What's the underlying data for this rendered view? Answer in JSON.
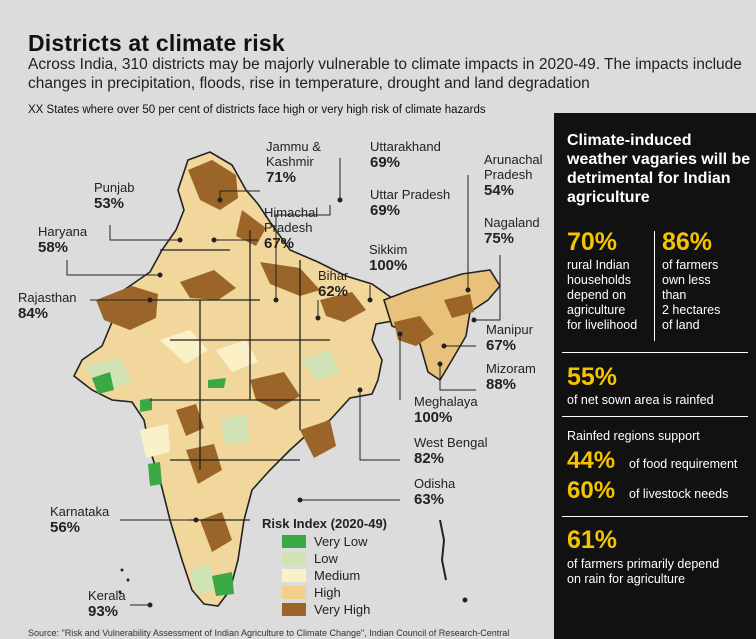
{
  "title": "Districts at climate risk",
  "subtitle": "Across India, 310 districts may be majorly vulnerable to climate impacts in 2020-49. The impacts include changes in precipitation, floods, rise in temperature, drought and land degradation",
  "note": "XX States where over 50 per cent of districts face high or very high risk of climate hazards",
  "states": [
    {
      "name": "Jammu & Kashmir",
      "line1": "Jammu &",
      "line2": "Kashmir",
      "pct": "71%"
    },
    {
      "name": "Uttarakhand",
      "line1": "Uttarakhand",
      "line2": "",
      "pct": "69%"
    },
    {
      "name": "Arunachal Pradesh",
      "line1": "Arunachal",
      "line2": "Pradesh",
      "pct": "54%"
    },
    {
      "name": "Punjab",
      "line1": "Punjab",
      "line2": "",
      "pct": "53%"
    },
    {
      "name": "Uttar Pradesh",
      "line1": "Uttar Pradesh",
      "line2": "",
      "pct": "69%"
    },
    {
      "name": "Himachal Pradesh",
      "line1": "Himachal",
      "line2": "Pradesh",
      "pct": "67%"
    },
    {
      "name": "Haryana",
      "line1": "Haryana",
      "line2": "",
      "pct": "58%"
    },
    {
      "name": "Nagaland",
      "line1": "Nagaland",
      "line2": "",
      "pct": "75%"
    },
    {
      "name": "Sikkim",
      "line1": "Sikkim",
      "line2": "",
      "pct": "100%"
    },
    {
      "name": "Bihar",
      "line1": "Bihar",
      "line2": "",
      "pct": "62%"
    },
    {
      "name": "Rajasthan",
      "line1": "Rajasthan",
      "line2": "",
      "pct": "84%"
    },
    {
      "name": "Manipur",
      "line1": "Manipur",
      "line2": "",
      "pct": "67%"
    },
    {
      "name": "Mizoram",
      "line1": "Mizoram",
      "line2": "",
      "pct": "88%"
    },
    {
      "name": "Meghalaya",
      "line1": "Meghalaya",
      "line2": "",
      "pct": "100%"
    },
    {
      "name": "West Bengal",
      "line1": "West Bengal",
      "line2": "",
      "pct": "82%"
    },
    {
      "name": "Odisha",
      "line1": "Odisha",
      "line2": "",
      "pct": "63%"
    },
    {
      "name": "Karnataka",
      "line1": "Karnataka",
      "line2": "",
      "pct": "56%"
    },
    {
      "name": "Kerala",
      "line1": "Kerala",
      "line2": "",
      "pct": "93%"
    }
  ],
  "legend": {
    "title": "Risk Index (2020-49)",
    "items": [
      {
        "label": "Very Low",
        "color": "#3aa845"
      },
      {
        "label": "Low",
        "color": "#cfe3b4"
      },
      {
        "label": "Medium",
        "color": "#fbf1c8"
      },
      {
        "label": "High",
        "color": "#f3cf8a"
      },
      {
        "label": "Very High",
        "color": "#9b6428"
      }
    ]
  },
  "panel": {
    "title": "Climate-induced weather vagaries will be detrimental for Indian agriculture",
    "stat1": {
      "value": "70%",
      "line1": "rural Indian",
      "line2": "households",
      "line3": "depend on",
      "line4": "agriculture",
      "line5": "for livelihood"
    },
    "stat2": {
      "value": "86%",
      "line1": "of farmers",
      "line2": "own less",
      "line3": "than",
      "line4": "2 hectares",
      "line5": "of land"
    },
    "stat3": {
      "value": "55%",
      "text": "of net sown area is rainfed"
    },
    "rainfed_heading": "Rainfed regions support",
    "stat4": {
      "value": "44%",
      "text": "of food requirement"
    },
    "stat5": {
      "value": "60%",
      "text": "of livestock needs"
    },
    "stat6": {
      "value": "61%",
      "line1": "of farmers primarily depend",
      "line2": "on rain for agriculture"
    }
  },
  "source": "Source: \"Risk and Vulnerability Assessment of Indian Agriculture to Climate Change\", Indian Council of Research-Central",
  "colors": {
    "accent": "#f5c400",
    "panel_bg": "#111111",
    "page_bg": "#dcdcdc"
  }
}
